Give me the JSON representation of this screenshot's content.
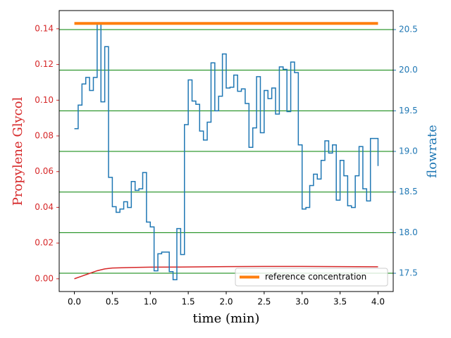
{
  "chart_data": {
    "type": "line",
    "xlabel": "time (min)",
    "ylabel": "Propylene Glycol",
    "y2label": "flowrate",
    "ylabel_color": "#d62728",
    "y2label_color": "#1f77b4",
    "xlim": [
      -0.2,
      4.2
    ],
    "ylim": [
      -0.00715,
      0.1502
    ],
    "y2lim": [
      17.275,
      20.734
    ],
    "xticks": [
      {
        "value": 0,
        "label": "0.0"
      },
      0.5,
      {
        "value": 1,
        "label": "1.0"
      },
      1.5,
      {
        "value": 2,
        "label": "2.0"
      },
      2.5,
      {
        "value": 3,
        "label": "3.0"
      },
      3.5,
      {
        "value": 4,
        "label": "4.0"
      }
    ],
    "yticks": [
      {
        "value": 0,
        "label": "0.00"
      },
      0.02,
      0.04,
      0.06,
      0.08,
      {
        "value": 0.1,
        "label": "0.10"
      },
      0.12,
      0.14
    ],
    "y2ticks": [
      17.5,
      {
        "value": 18,
        "label": "18.0"
      },
      18.5,
      {
        "value": 19,
        "label": "19.0"
      },
      19.5,
      {
        "value": 20,
        "label": "20.0"
      },
      20.5
    ],
    "grid": {
      "axis": "y2",
      "color": "#008000"
    },
    "legend": "lower right",
    "series": [
      {
        "color": "#d62728",
        "axis": "y",
        "x": [
          0,
          0.1,
          0.2,
          0.3,
          0.4,
          0.5,
          0.75,
          1,
          1.5,
          2,
          2.5,
          3,
          3.5,
          4
        ],
        "values": [
          0,
          0.0015,
          0.003,
          0.0045,
          0.0055,
          0.006,
          0.0063,
          0.0065,
          0.0066,
          0.0068,
          0.0069,
          0.0069,
          0.0068,
          0.0067
        ]
      },
      {
        "color": "#1f77b4",
        "axis": "y2",
        "step": "post",
        "x": [
          0,
          0.05,
          0.1,
          0.15,
          0.2,
          0.25,
          0.3,
          0.35,
          0.4,
          0.45,
          0.5,
          0.55,
          0.6,
          0.65,
          0.7,
          0.75,
          0.8,
          0.85,
          0.9,
          0.95,
          1,
          1.05,
          1.1,
          1.15,
          1.2,
          1.25,
          1.3,
          1.35,
          1.4,
          1.45,
          1.5,
          1.55,
          1.6,
          1.65,
          1.7,
          1.75,
          1.8,
          1.85,
          1.9,
          1.95,
          2,
          2.05,
          2.1,
          2.15,
          2.2,
          2.25,
          2.3,
          2.35,
          2.4,
          2.45,
          2.5,
          2.55,
          2.6,
          2.65,
          2.7,
          2.75,
          2.8,
          2.85,
          2.9,
          2.95,
          3,
          3.05,
          3.1,
          3.15,
          3.2,
          3.25,
          3.3,
          3.35,
          3.4,
          3.45,
          3.5,
          3.55,
          3.6,
          3.65,
          3.7,
          3.75,
          3.8,
          3.85,
          3.9,
          3.95,
          4
        ],
        "values": [
          19.28,
          19.57,
          19.83,
          19.91,
          19.75,
          19.91,
          20.58,
          19.61,
          20.29,
          18.68,
          18.32,
          18.25,
          18.29,
          18.38,
          18.31,
          18.63,
          18.52,
          18.54,
          18.74,
          18.13,
          18.07,
          17.53,
          17.74,
          17.76,
          17.76,
          17.52,
          17.42,
          18.05,
          17.73,
          19.33,
          19.88,
          19.62,
          19.58,
          19.25,
          19.14,
          19.36,
          20.09,
          19.5,
          19.68,
          20.2,
          19.78,
          19.79,
          19.94,
          19.74,
          19.77,
          19.59,
          19.05,
          19.29,
          19.92,
          19.23,
          19.75,
          19.65,
          19.78,
          19.46,
          20.04,
          20.01,
          19.49,
          20.1,
          19.97,
          19.08,
          18.29,
          18.31,
          18.58,
          18.72,
          18.66,
          18.89,
          19.13,
          18.98,
          19.08,
          18.4,
          18.89,
          18.7,
          18.33,
          18.31,
          18.7,
          19.06,
          18.54,
          18.39,
          19.16,
          19.16,
          18.82
        ]
      },
      {
        "name": "reference concentration",
        "color": "#ff7f0e",
        "axis": "y",
        "width": 4,
        "x": [
          0,
          4
        ],
        "values": [
          0.143,
          0.143
        ]
      }
    ]
  }
}
